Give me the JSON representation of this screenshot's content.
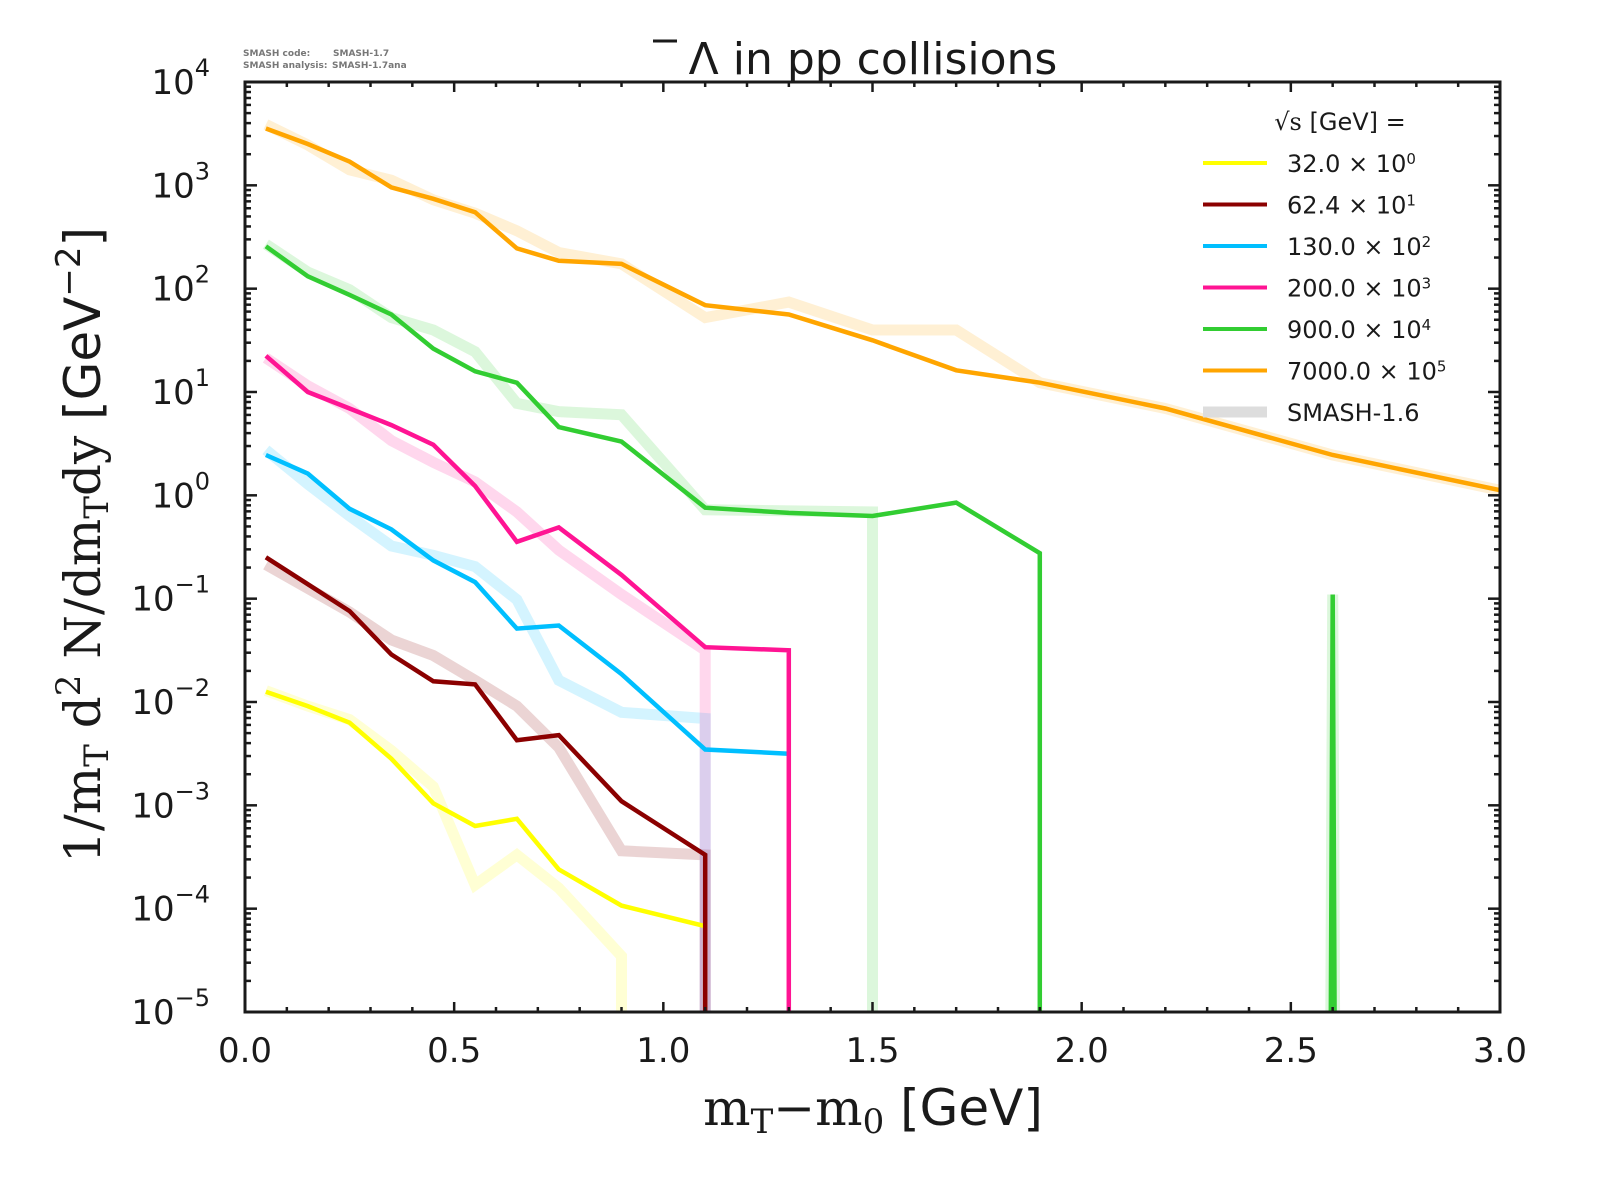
{
  "meta": {
    "code_label": "SMASH code:",
    "code_value": "SMASH-1.7",
    "analysis_label": "SMASH analysis:",
    "analysis_value": "SMASH-1.7ana"
  },
  "chart_data": {
    "type": "line",
    "title": "Λ̅ in pp collisions",
    "title_symbol": "Λ",
    "title_rest": " in pp collisions",
    "xlabel": "mT−m0 [GeV]",
    "xlabel_parts": {
      "m1": "m",
      "sub1": "T",
      "dash": "−m",
      "sub2": "0",
      "unit": " [GeV]"
    },
    "ylabel": "1/mT d2 N/dmTdy [GeV−2]",
    "ylabel_parts": {
      "serif": "1/m",
      "sub1": "T",
      "d": " d",
      "sup": "2",
      "n": " N/dm",
      "sub2": "T",
      "dy": "dy ",
      "unit": "[GeV",
      "unit_sup": "−2",
      "unit_close": "]"
    },
    "xscale": "linear",
    "yscale": "log",
    "xlim": [
      0.0,
      3.0
    ],
    "ylim_log10": [
      -5,
      4
    ],
    "xticks": [
      "0.0",
      "0.5",
      "1.0",
      "1.5",
      "2.0",
      "2.5",
      "3.0"
    ],
    "xtick_values": [
      0.0,
      0.5,
      1.0,
      1.5,
      2.0,
      2.5,
      3.0
    ],
    "yticks_exponents": [
      4,
      3,
      2,
      1,
      0,
      -1,
      -2,
      -3,
      -4,
      -5
    ],
    "ytick_base": "10",
    "grid": false,
    "legend": {
      "placement": "top-right",
      "header_sqrt": "√s",
      "header_rest": " [GeV] =",
      "entries": [
        {
          "label": "32.0 × 10",
          "sup": "0",
          "color": "#ffff00"
        },
        {
          "label": "62.4 × 10",
          "sup": "1",
          "color": "#8b0000"
        },
        {
          "label": "130.0 × 10",
          "sup": "2",
          "color": "#00bfff"
        },
        {
          "label": "200.0 × 10",
          "sup": "3",
          "color": "#ff1493"
        },
        {
          "label": "900.0 × 10",
          "sup": "4",
          "color": "#32cd32"
        },
        {
          "label": "7000.0 × 10",
          "sup": "5",
          "color": "#ffa500"
        },
        {
          "label": "SMASH-1.6",
          "sup": "",
          "color": "#dddddd"
        }
      ]
    },
    "floor_note": "values below 1e-5 drop to the axis floor",
    "series": [
      {
        "name": "32.0 GeV × 10^0",
        "color": "#ffff00",
        "version": "SMASH-1.7",
        "x": [
          0.05,
          0.15,
          0.25,
          0.35,
          0.45,
          0.55,
          0.65,
          0.75,
          0.9,
          1.1,
          1.1
        ],
        "log10y": [
          -1.9,
          -2.04,
          -2.2,
          -2.55,
          -2.98,
          -3.2,
          -3.13,
          -3.62,
          -3.97,
          -4.17,
          -5.5
        ]
      },
      {
        "name": "32.0 GeV × 10^0",
        "color": "#ffff00",
        "version": "SMASH-1.6",
        "x": [
          0.05,
          0.15,
          0.25,
          0.35,
          0.45,
          0.55,
          0.65,
          0.75,
          0.9,
          0.9
        ],
        "log10y": [
          -1.89,
          -2.04,
          -2.17,
          -2.47,
          -2.82,
          -3.77,
          -3.48,
          -3.8,
          -4.46,
          -5.5
        ]
      },
      {
        "name": "62.4 GeV × 10^1",
        "color": "#8b0000",
        "version": "SMASH-1.7",
        "x": [
          0.05,
          0.15,
          0.25,
          0.35,
          0.45,
          0.55,
          0.65,
          0.75,
          0.9,
          1.1,
          1.1
        ],
        "log10y": [
          -0.6,
          -0.86,
          -1.12,
          -1.54,
          -1.8,
          -1.83,
          -2.37,
          -2.32,
          -2.96,
          -3.48,
          -5.5
        ]
      },
      {
        "name": "62.4 GeV × 10^1",
        "color": "#8b0000",
        "version": "SMASH-1.6",
        "x": [
          0.05,
          0.15,
          0.25,
          0.35,
          0.45,
          0.55,
          0.65,
          0.75,
          0.9,
          1.1,
          1.1
        ],
        "log10y": [
          -0.67,
          -0.9,
          -1.13,
          -1.4,
          -1.55,
          -1.79,
          -2.04,
          -2.44,
          -3.44,
          -3.48,
          -5.5
        ]
      },
      {
        "name": "130.0 GeV × 10^2",
        "color": "#00bfff",
        "version": "SMASH-1.7",
        "x": [
          0.05,
          0.15,
          0.25,
          0.35,
          0.45,
          0.55,
          0.65,
          0.75,
          0.9,
          1.1,
          1.3
        ],
        "log10y": [
          0.39,
          0.21,
          -0.13,
          -0.33,
          -0.63,
          -0.84,
          -1.29,
          -1.26,
          -1.73,
          -2.46,
          -2.5
        ]
      },
      {
        "name": "130.0 GeV × 10^2",
        "color": "#00bfff",
        "version": "SMASH-1.6",
        "x": [
          0.05,
          0.15,
          0.25,
          0.35,
          0.45,
          0.55,
          0.65,
          0.75,
          0.9,
          1.1,
          1.1
        ],
        "log10y": [
          0.44,
          0.11,
          -0.2,
          -0.49,
          -0.58,
          -0.69,
          -1.01,
          -1.79,
          -2.1,
          -2.16,
          -5.5
        ]
      },
      {
        "name": "200.0 GeV × 10^3",
        "color": "#ff1493",
        "version": "SMASH-1.7",
        "x": [
          0.05,
          0.15,
          0.25,
          0.35,
          0.45,
          0.55,
          0.65,
          0.75,
          0.9,
          1.1,
          1.3,
          1.3
        ],
        "log10y": [
          1.35,
          1.0,
          0.84,
          0.68,
          0.49,
          0.09,
          -0.45,
          -0.31,
          -0.77,
          -1.47,
          -1.5,
          -5.5
        ]
      },
      {
        "name": "200.0 GeV × 10^3",
        "color": "#ff1493",
        "version": "SMASH-1.6",
        "x": [
          0.05,
          0.15,
          0.25,
          0.35,
          0.45,
          0.55,
          0.65,
          0.75,
          0.9,
          1.1,
          1.1
        ],
        "log10y": [
          1.33,
          1.06,
          0.84,
          0.53,
          0.32,
          0.13,
          -0.16,
          -0.53,
          -0.96,
          -1.5,
          -5.5
        ]
      },
      {
        "name": "900.0 GeV × 10^4",
        "color": "#32cd32",
        "version": "SMASH-1.7",
        "x": [
          0.05,
          0.15,
          0.25,
          0.35,
          0.45,
          0.55,
          0.65,
          0.75,
          0.9,
          1.1,
          1.3,
          1.5,
          1.7,
          1.9,
          1.9
        ],
        "log10y": [
          2.41,
          2.12,
          1.94,
          1.75,
          1.42,
          1.2,
          1.09,
          0.66,
          0.52,
          -0.12,
          -0.17,
          -0.2,
          -0.07,
          -0.56,
          -5.5
        ]
      },
      {
        "name": "900.0 GeV × 10^4 (2.6 GeV bin)",
        "color": "#32cd32",
        "version": "SMASH-1.7",
        "x": [
          2.595,
          2.6,
          2.605
        ],
        "log10y": [
          -5.5,
          -0.96,
          -5.5
        ]
      },
      {
        "name": "900.0 GeV × 10^4",
        "color": "#32cd32",
        "version": "SMASH-1.6",
        "x": [
          0.05,
          0.15,
          0.25,
          0.35,
          0.45,
          0.55,
          0.65,
          0.75,
          0.9,
          1.1,
          1.5,
          1.5
        ],
        "log10y": [
          2.43,
          2.16,
          1.99,
          1.72,
          1.6,
          1.39,
          0.89,
          0.81,
          0.78,
          -0.14,
          -0.16,
          -5.5
        ]
      },
      {
        "name": "900.0 GeV × 10^4 (2.6 GeV bin)",
        "color": "#32cd32",
        "version": "SMASH-1.6",
        "x": [
          2.595,
          2.6,
          2.605
        ],
        "log10y": [
          -5.5,
          -0.96,
          -5.5
        ]
      },
      {
        "name": "7000.0 GeV × 10^5",
        "color": "#ffa500",
        "version": "SMASH-1.7",
        "x": [
          0.05,
          0.15,
          0.25,
          0.35,
          0.45,
          0.55,
          0.65,
          0.75,
          0.9,
          1.1,
          1.3,
          1.5,
          1.7,
          1.9,
          2.2,
          2.6,
          3.0
        ],
        "log10y": [
          3.55,
          3.4,
          3.23,
          2.98,
          2.87,
          2.74,
          2.39,
          2.27,
          2.24,
          1.84,
          1.75,
          1.5,
          1.21,
          1.09,
          0.84,
          0.39,
          0.05
        ]
      },
      {
        "name": "7000.0 GeV × 10^5",
        "color": "#ffa500",
        "version": "SMASH-1.6",
        "x": [
          0.05,
          0.15,
          0.25,
          0.35,
          0.45,
          0.55,
          0.65,
          0.75,
          0.9,
          1.1,
          1.3,
          1.5,
          1.7,
          1.9,
          2.2,
          2.6,
          3.0
        ],
        "log10y": [
          3.59,
          3.39,
          3.15,
          3.05,
          2.86,
          2.73,
          2.56,
          2.35,
          2.24,
          1.72,
          1.87,
          1.6,
          1.6,
          1.09,
          0.84,
          0.39,
          0.05
        ]
      }
    ]
  }
}
